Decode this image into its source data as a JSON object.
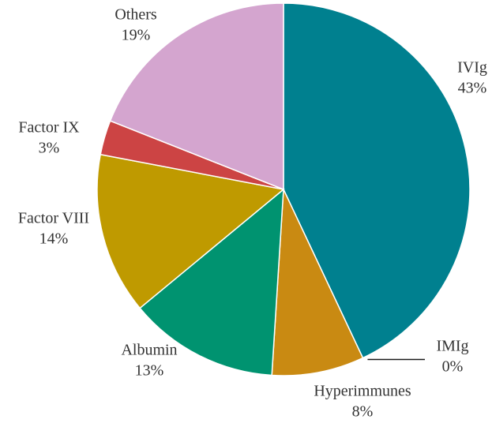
{
  "chart_data": {
    "type": "pie",
    "categories": [
      "IVIg",
      "IMIg",
      "Hyperimmunes",
      "Albumin",
      "Factor VIII",
      "Factor IX",
      "Others"
    ],
    "values": [
      43,
      0,
      8,
      13,
      14,
      3,
      19
    ],
    "value_labels": [
      "43%",
      "0%",
      "8%",
      "13%",
      "14%",
      "3%",
      "19%"
    ],
    "colors": [
      "#00808f",
      "#1a1a1a",
      "#c98a12",
      "#009370",
      "#bf9a00",
      "#cc4444",
      "#d4a5cf"
    ]
  }
}
